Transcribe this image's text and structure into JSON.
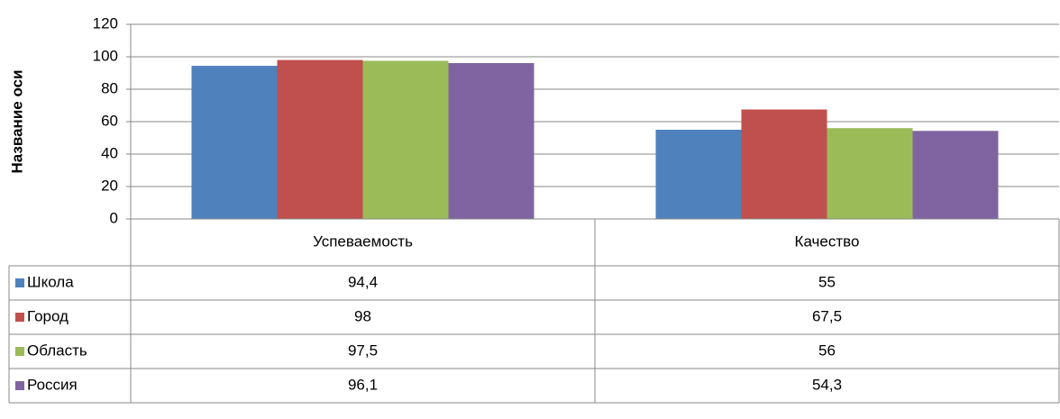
{
  "chart_data": {
    "type": "bar",
    "y_label": "Название оси",
    "categories": [
      "Успеваемость",
      "Качество"
    ],
    "series": [
      {
        "name": "Школа",
        "color": "#4f81bd",
        "values": [
          94.4,
          55
        ],
        "value_labels": [
          "94,4",
          "55"
        ]
      },
      {
        "name": "Город",
        "color": "#c0504d",
        "values": [
          98,
          67.5
        ],
        "value_labels": [
          "98",
          "67,5"
        ]
      },
      {
        "name": "Область",
        "color": "#9bbb59",
        "values": [
          97.5,
          56
        ],
        "value_labels": [
          "97,5",
          "56"
        ]
      },
      {
        "name": "Россия",
        "color": "#8064a2",
        "values": [
          96.1,
          54.3
        ],
        "value_labels": [
          "96,1",
          "54,3"
        ]
      }
    ],
    "ylim": [
      0,
      120
    ],
    "yticks": [
      0,
      20,
      40,
      60,
      80,
      100,
      120
    ],
    "grid": true
  }
}
